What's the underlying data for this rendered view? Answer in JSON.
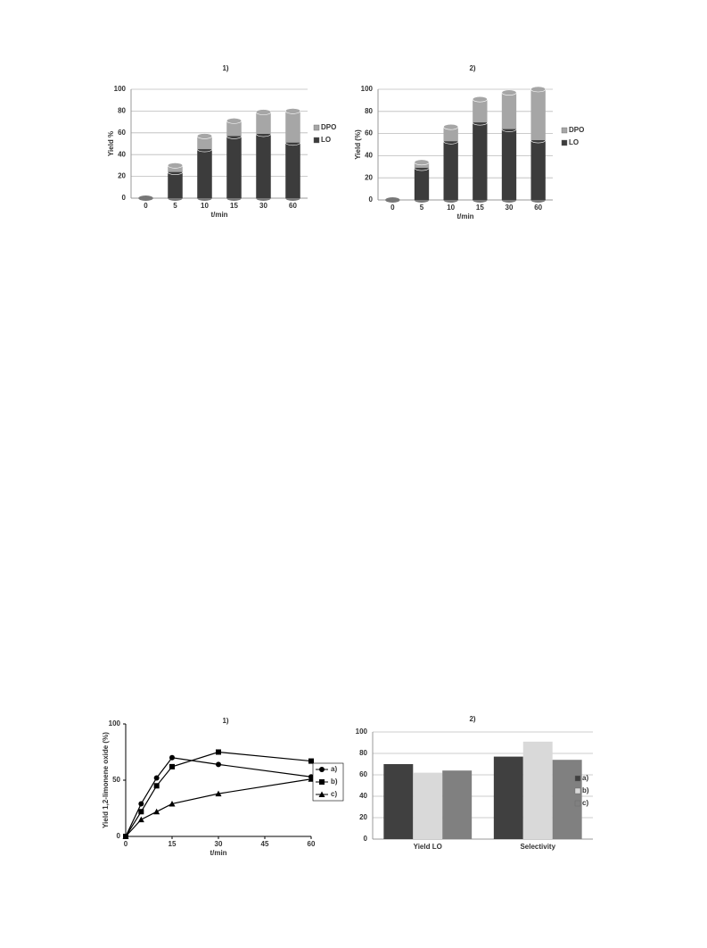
{
  "chart_data": [
    {
      "type": "bar",
      "stacked": true,
      "cylinder": true,
      "title": "1)",
      "ylabel": "Yield %",
      "xlabel": "t/min",
      "categories": [
        "0",
        "5",
        "10",
        "15",
        "30",
        "60"
      ],
      "series": [
        {
          "name": "LO",
          "color": "#3c3c3c",
          "values": [
            0,
            24,
            45,
            57,
            59,
            51
          ]
        },
        {
          "name": "DPO",
          "color": "#a6a6a6",
          "values": [
            0,
            6,
            12,
            14,
            20,
            29
          ]
        }
      ],
      "ylim": [
        0,
        100
      ],
      "yticks": [
        0,
        20,
        40,
        60,
        80,
        100
      ],
      "grid": true
    },
    {
      "type": "bar",
      "stacked": true,
      "cylinder": true,
      "title": "2)",
      "ylabel": "Yield (%)",
      "xlabel": "t/min",
      "categories": [
        "0",
        "5",
        "10",
        "15",
        "30",
        "60"
      ],
      "series": [
        {
          "name": "LO",
          "color": "#3c3c3c",
          "values": [
            0,
            29,
            53,
            70,
            64,
            54
          ]
        },
        {
          "name": "DPO",
          "color": "#a6a6a6",
          "values": [
            0,
            5,
            13,
            21,
            33,
            46
          ]
        }
      ],
      "ylim": [
        0,
        100
      ],
      "yticks": [
        0,
        20,
        40,
        60,
        80,
        100
      ],
      "grid": true
    },
    {
      "type": "line",
      "title": "1)",
      "ylabel": "Yield 1,2-limonene oxide (%)",
      "xlabel": "t/min",
      "x": [
        0,
        5,
        10,
        15,
        30,
        60
      ],
      "series": [
        {
          "name": "a)",
          "color": "#000000",
          "marker": "circle",
          "values": [
            0,
            29,
            52,
            70,
            64,
            53
          ]
        },
        {
          "name": "b)",
          "color": "#000000",
          "marker": "square",
          "values": [
            0,
            22,
            45,
            62,
            75,
            67
          ]
        },
        {
          "name": "c)",
          "color": "#000000",
          "marker": "triangle",
          "values": [
            0,
            15,
            22,
            29,
            38,
            51
          ]
        }
      ],
      "xlim": [
        0,
        60
      ],
      "xticks": [
        0,
        15,
        30,
        45,
        60
      ],
      "ylim": [
        0,
        100
      ],
      "yticks": [
        0,
        50,
        100
      ],
      "grid": false
    },
    {
      "type": "bar",
      "stacked": false,
      "title": "2)",
      "categories": [
        "Yield LO",
        "Selectivity"
      ],
      "series": [
        {
          "name": "a)",
          "color": "#404040",
          "values": [
            70,
            77
          ]
        },
        {
          "name": "b)",
          "color": "#d9d9d9",
          "values": [
            62,
            91
          ]
        },
        {
          "name": "c)",
          "color": "#808080",
          "values": [
            64,
            74
          ]
        }
      ],
      "ylim": [
        0,
        100
      ],
      "yticks": [
        0,
        20,
        40,
        60,
        80,
        100
      ],
      "grid": true
    }
  ]
}
